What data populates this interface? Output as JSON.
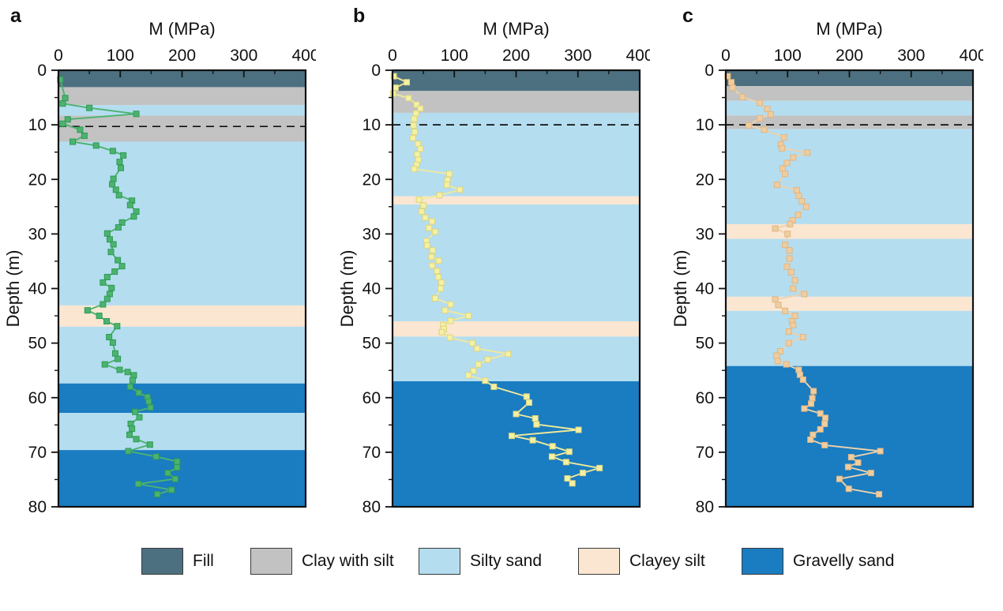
{
  "figure": {
    "background": "#ffffff"
  },
  "layer_colors": {
    "fill": "#4D7080",
    "clay_with_silt": "#C2C2C2",
    "silty_sand": "#B4DDF0",
    "clayey_silt": "#FAE6D1",
    "gravelly_sand": "#1A7CC1"
  },
  "series_styles": {
    "a": {
      "line": "#4CB36F",
      "marker_fill": "#4CB36F",
      "marker_edge": "#2E9B55"
    },
    "b": {
      "line": "#EFE99C",
      "marker_fill": "#F5F1A3",
      "marker_edge": "#DCD47F"
    },
    "c": {
      "line": "#EBD2AE",
      "marker_fill": "#F0CD9F",
      "marker_edge": "#DFB684"
    }
  },
  "legend": {
    "items": [
      {
        "label": "Fill",
        "color": "#4D7080"
      },
      {
        "label": "Clay with silt",
        "color": "#C2C2C2"
      },
      {
        "label": "Silty sand",
        "color": "#B4DDF0"
      },
      {
        "label": "Clayey silt",
        "color": "#FAE6D1"
      },
      {
        "label": "Gravelly sand",
        "color": "#1A7CC1"
      }
    ]
  },
  "chart_data": [
    {
      "type": "line",
      "panel": "a",
      "xlabel": "M (MPa)",
      "ylabel": "Depth (m)",
      "xlim": [
        0,
        400
      ],
      "ylim": [
        0,
        80
      ],
      "x_ticks": [
        0,
        100,
        200,
        300,
        400
      ],
      "y_ticks": [
        0,
        10,
        20,
        30,
        40,
        50,
        60,
        70,
        80
      ],
      "x_minor_step": 50,
      "y_minor_step": 5,
      "dashed_line_depth": 10.3,
      "layers": [
        [
          "fill",
          0,
          3.1
        ],
        [
          "clay_with_silt",
          3.1,
          6.4
        ],
        [
          "silty_sand",
          6.4,
          8.3
        ],
        [
          "clay_with_silt",
          8.3,
          13.1
        ],
        [
          "silty_sand",
          13.1,
          43.1
        ],
        [
          "clayey_silt",
          43.1,
          47.0
        ],
        [
          "silty_sand",
          47.0,
          57.4
        ],
        [
          "gravelly_sand",
          57.4,
          62.8
        ],
        [
          "silty_sand",
          62.8,
          69.6
        ],
        [
          "gravelly_sand",
          69.6,
          80
        ]
      ],
      "points_M_depth": [
        [
          3,
          1.7
        ],
        [
          11,
          5.1
        ],
        [
          7,
          6.1
        ],
        [
          50,
          6.9
        ],
        [
          126,
          8.0
        ],
        [
          15,
          9.0
        ],
        [
          7,
          9.8
        ],
        [
          35,
          10.9
        ],
        [
          42,
          12.0
        ],
        [
          23,
          13.1
        ],
        [
          61,
          13.8
        ],
        [
          88,
          14.8
        ],
        [
          105,
          15.6
        ],
        [
          99,
          16.8
        ],
        [
          101,
          17.9
        ],
        [
          89,
          19.9
        ],
        [
          87,
          20.9
        ],
        [
          93,
          21.9
        ],
        [
          98,
          22.9
        ],
        [
          119,
          23.9
        ],
        [
          116,
          24.7
        ],
        [
          126,
          25.9
        ],
        [
          122,
          26.8
        ],
        [
          103,
          27.9
        ],
        [
          97,
          28.8
        ],
        [
          79,
          29.9
        ],
        [
          83,
          31.0
        ],
        [
          89,
          31.9
        ],
        [
          85,
          33.3
        ],
        [
          96,
          34.8
        ],
        [
          103,
          35.9
        ],
        [
          91,
          36.9
        ],
        [
          79,
          37.9
        ],
        [
          72,
          38.9
        ],
        [
          86,
          39.9
        ],
        [
          83,
          41.0
        ],
        [
          79,
          41.9
        ],
        [
          72,
          42.9
        ],
        [
          47,
          44.0
        ],
        [
          66,
          45.0
        ],
        [
          78,
          46.0
        ],
        [
          95,
          46.9
        ],
        [
          82,
          48.9
        ],
        [
          88,
          49.9
        ],
        [
          92,
          51.9
        ],
        [
          96,
          52.9
        ],
        [
          75,
          53.9
        ],
        [
          99,
          54.9
        ],
        [
          112,
          55.3
        ],
        [
          122,
          55.9
        ],
        [
          120,
          56.8
        ],
        [
          116,
          58.0
        ],
        [
          130,
          59.1
        ],
        [
          144,
          59.9
        ],
        [
          146,
          60.7
        ],
        [
          149,
          61.8
        ],
        [
          124,
          62.6
        ],
        [
          131,
          63.6
        ],
        [
          117,
          64.8
        ],
        [
          119,
          65.7
        ],
        [
          115,
          66.8
        ],
        [
          126,
          67.6
        ],
        [
          148,
          68.6
        ],
        [
          113,
          69.8
        ],
        [
          158,
          70.8
        ],
        [
          192,
          71.7
        ],
        [
          192,
          72.8
        ],
        [
          177,
          73.8
        ],
        [
          189,
          74.9
        ],
        [
          129,
          75.8
        ],
        [
          183,
          76.9
        ],
        [
          160,
          77.7
        ]
      ]
    },
    {
      "type": "line",
      "panel": "b",
      "xlabel": "M (MPa)",
      "ylabel": "Depth (m)",
      "xlim": [
        0,
        400
      ],
      "ylim": [
        0,
        80
      ],
      "x_ticks": [
        0,
        100,
        200,
        300,
        400
      ],
      "y_ticks": [
        0,
        10,
        20,
        30,
        40,
        50,
        60,
        70,
        80
      ],
      "x_minor_step": 50,
      "y_minor_step": 5,
      "dashed_line_depth": 10.0,
      "layers": [
        [
          "fill",
          0,
          3.8
        ],
        [
          "clay_with_silt",
          3.8,
          7.8
        ],
        [
          "silty_sand",
          7.8,
          23.1
        ],
        [
          "clayey_silt",
          23.1,
          24.6
        ],
        [
          "silty_sand",
          24.6,
          46.0
        ],
        [
          "clayey_silt",
          46.0,
          48.8
        ],
        [
          "silty_sand",
          48.8,
          57.0
        ],
        [
          "gravelly_sand",
          57.0,
          80
        ]
      ],
      "points_M_depth": [
        [
          2,
          1.1
        ],
        [
          23,
          2.2
        ],
        [
          5,
          3.2
        ],
        [
          1,
          4.3
        ],
        [
          26,
          5.1
        ],
        [
          39,
          6.3
        ],
        [
          45,
          7.0
        ],
        [
          38,
          7.9
        ],
        [
          35,
          8.9
        ],
        [
          34,
          10.1
        ],
        [
          36,
          11.3
        ],
        [
          33,
          12.4
        ],
        [
          41,
          13.5
        ],
        [
          45,
          14.4
        ],
        [
          40,
          15.4
        ],
        [
          42,
          16.4
        ],
        [
          39,
          17.3
        ],
        [
          35,
          18.1
        ],
        [
          92,
          19.0
        ],
        [
          89,
          20.1
        ],
        [
          88,
          21.0
        ],
        [
          109,
          21.9
        ],
        [
          76,
          22.9
        ],
        [
          43,
          23.7
        ],
        [
          50,
          24.8
        ],
        [
          47,
          25.9
        ],
        [
          53,
          27.0
        ],
        [
          64,
          27.7
        ],
        [
          59,
          28.9
        ],
        [
          69,
          29.6
        ],
        [
          55,
          31.3
        ],
        [
          56,
          32.1
        ],
        [
          65,
          33.0
        ],
        [
          63,
          34.2
        ],
        [
          75,
          34.9
        ],
        [
          64,
          35.8
        ],
        [
          72,
          36.8
        ],
        [
          74,
          37.9
        ],
        [
          79,
          38.9
        ],
        [
          78,
          40.0
        ],
        [
          69,
          41.8
        ],
        [
          94,
          42.9
        ],
        [
          85,
          44.0
        ],
        [
          123,
          45.0
        ],
        [
          94,
          45.9
        ],
        [
          82,
          46.7
        ],
        [
          83,
          47.4
        ],
        [
          80,
          48.0
        ],
        [
          93,
          49.0
        ],
        [
          129,
          50.0
        ],
        [
          137,
          51.0
        ],
        [
          187,
          52.0
        ],
        [
          154,
          53.0
        ],
        [
          139,
          53.9
        ],
        [
          131,
          55.1
        ],
        [
          123,
          55.9
        ],
        [
          150,
          56.9
        ],
        [
          164,
          58.0
        ],
        [
          217,
          59.8
        ],
        [
          221,
          60.9
        ],
        [
          200,
          63.0
        ],
        [
          231,
          63.8
        ],
        [
          233,
          64.9
        ],
        [
          301,
          65.9
        ],
        [
          193,
          67.0
        ],
        [
          227,
          67.8
        ],
        [
          259,
          68.9
        ],
        [
          286,
          69.9
        ],
        [
          258,
          70.8
        ],
        [
          281,
          71.8
        ],
        [
          335,
          72.9
        ],
        [
          308,
          73.8
        ],
        [
          283,
          74.8
        ],
        [
          291,
          75.7
        ]
      ]
    },
    {
      "type": "line",
      "panel": "c",
      "xlabel": "M (MPa)",
      "ylabel": "Depth (m)",
      "xlim": [
        0,
        400
      ],
      "ylim": [
        0,
        80
      ],
      "x_ticks": [
        0,
        100,
        200,
        300,
        400
      ],
      "y_ticks": [
        0,
        10,
        20,
        30,
        40,
        50,
        60,
        70,
        80
      ],
      "x_minor_step": 50,
      "y_minor_step": 5,
      "dashed_line_depth": 10.0,
      "layers": [
        [
          "fill",
          0,
          2.9
        ],
        [
          "clay_with_silt",
          2.9,
          5.6
        ],
        [
          "silty_sand",
          5.6,
          8.3
        ],
        [
          "clay_with_silt",
          8.3,
          10.8
        ],
        [
          "silty_sand",
          10.8,
          28.2
        ],
        [
          "clayey_silt",
          28.2,
          30.9
        ],
        [
          "silty_sand",
          30.9,
          41.5
        ],
        [
          "clayey_silt",
          41.5,
          44.1
        ],
        [
          "silty_sand",
          44.1,
          54.2
        ],
        [
          "gravelly_sand",
          54.2,
          80
        ]
      ],
      "points_M_depth": [
        [
          3,
          1.1
        ],
        [
          9,
          2.2
        ],
        [
          11,
          3.2
        ],
        [
          27,
          4.9
        ],
        [
          55,
          6.0
        ],
        [
          67,
          7.1
        ],
        [
          73,
          8.1
        ],
        [
          55,
          8.8
        ],
        [
          37,
          10.1
        ],
        [
          62,
          10.9
        ],
        [
          94,
          12.3
        ],
        [
          89,
          13.6
        ],
        [
          91,
          14.3
        ],
        [
          132,
          15.1
        ],
        [
          109,
          16.0
        ],
        [
          99,
          17.0
        ],
        [
          92,
          18.0
        ],
        [
          96,
          19.0
        ],
        [
          83,
          21.0
        ],
        [
          115,
          22.0
        ],
        [
          118,
          23.0
        ],
        [
          123,
          24.0
        ],
        [
          130,
          25.0
        ],
        [
          117,
          26.5
        ],
        [
          108,
          27.5
        ],
        [
          104,
          28.2
        ],
        [
          80,
          29.0
        ],
        [
          100,
          30.0
        ],
        [
          96,
          32.0
        ],
        [
          103,
          33.0
        ],
        [
          103,
          34.5
        ],
        [
          99,
          36.0
        ],
        [
          106,
          37.0
        ],
        [
          112,
          38.5
        ],
        [
          109,
          40.0
        ],
        [
          127,
          41.0
        ],
        [
          80,
          42.0
        ],
        [
          85,
          43.0
        ],
        [
          96,
          44.1
        ],
        [
          112,
          45.0
        ],
        [
          107,
          46.0
        ],
        [
          109,
          46.7
        ],
        [
          102,
          47.9
        ],
        [
          125,
          48.9
        ],
        [
          102,
          50.0
        ],
        [
          88,
          51.5
        ],
        [
          82,
          52.3
        ],
        [
          84,
          53.3
        ],
        [
          98,
          53.9
        ],
        [
          118,
          54.9
        ],
        [
          120,
          55.8
        ],
        [
          125,
          56.7
        ],
        [
          142,
          58.8
        ],
        [
          140,
          60.1
        ],
        [
          138,
          61.1
        ],
        [
          127,
          62.0
        ],
        [
          153,
          62.9
        ],
        [
          161,
          63.7
        ],
        [
          160,
          64.8
        ],
        [
          153,
          65.8
        ],
        [
          141,
          66.8
        ],
        [
          137,
          67.7
        ],
        [
          160,
          68.7
        ],
        [
          250,
          69.8
        ],
        [
          203,
          70.9
        ],
        [
          214,
          71.9
        ],
        [
          198,
          72.7
        ],
        [
          235,
          73.8
        ],
        [
          184,
          74.9
        ],
        [
          199,
          76.7
        ],
        [
          248,
          77.7
        ]
      ]
    }
  ]
}
